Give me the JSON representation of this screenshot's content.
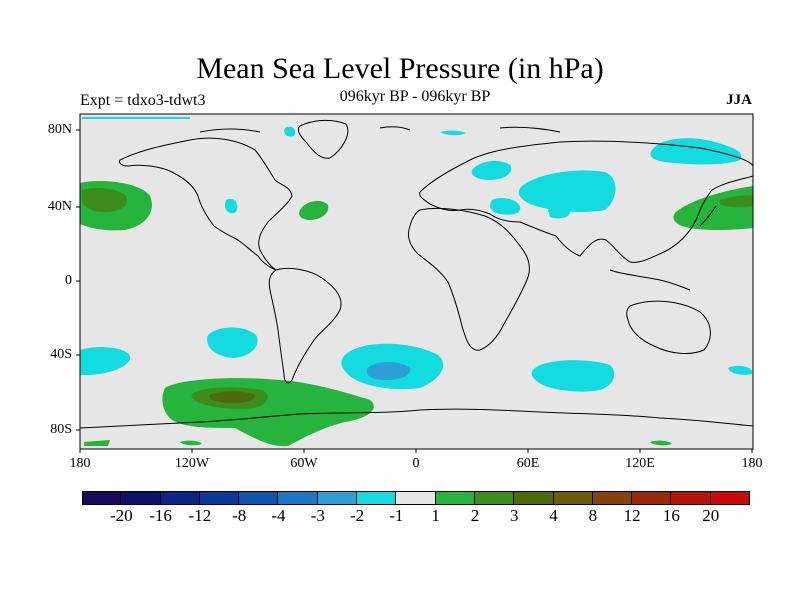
{
  "title": "Mean Sea Level Pressure (in hPa)",
  "experiment_label": "Expt = tdxo3-tdwt3",
  "period_label": "096kyr BP - 096kyr BP",
  "season_label": "JJA",
  "lat_ticks": [
    "80N",
    "40N",
    "0",
    "40S",
    "80S"
  ],
  "lon_ticks": [
    "180",
    "120W",
    "60W",
    "0",
    "60E",
    "120E",
    "180"
  ],
  "colorbar": {
    "colors": [
      "#1a0a5e",
      "#0d136b",
      "#0a2584",
      "#0a3a9a",
      "#0f55b0",
      "#1b78c6",
      "#2ea0d6",
      "#13dbe0",
      "#e6e6e6",
      "#26b43c",
      "#3c8c1e",
      "#4d6b0d",
      "#6b5c0a",
      "#86420a",
      "#9c280a",
      "#b4140a",
      "#c80a0a"
    ],
    "labels": [
      "-20",
      "-16",
      "-12",
      "-8",
      "-4",
      "-3",
      "-2",
      "-1",
      "1",
      "2",
      "3",
      "4",
      "8",
      "12",
      "16",
      "20"
    ]
  },
  "colors": {
    "background": "#e6e6e6",
    "neg_light": "#13dbe0",
    "neg_mid": "#2ea0d6",
    "pos_light": "#26b43c",
    "pos_mid": "#3c8c1e",
    "pos_dark": "#4d6b0d"
  }
}
